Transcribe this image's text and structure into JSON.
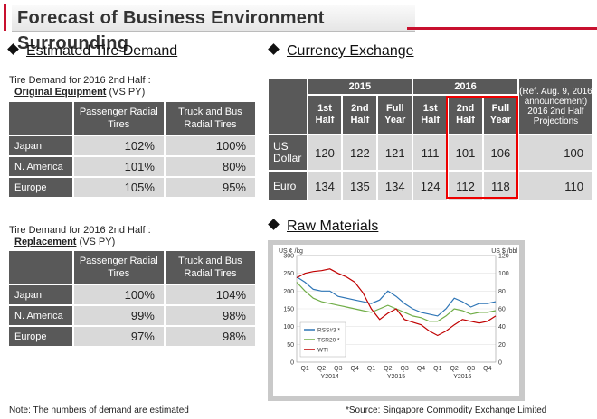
{
  "header": {
    "title": "Forecast of Business Environment Surrounding"
  },
  "tire_demand": {
    "heading": "Estimated Tire Demand",
    "oe": {
      "caption_line1": "Tire Demand for 2016 2nd Half :",
      "caption_bold": "Original Equipment",
      "caption_suffix": " (VS PY)",
      "col1": "Passenger Radial Tires",
      "col2": "Truck and Bus Radial Tires",
      "rows": [
        {
          "region": "Japan",
          "pass": "102%",
          "tb": "100%"
        },
        {
          "region": "N. America",
          "pass": "101%",
          "tb": "80%"
        },
        {
          "region": "Europe",
          "pass": "105%",
          "tb": "95%"
        }
      ]
    },
    "rep": {
      "caption_line1": "Tire Demand for 2016 2nd Half :",
      "caption_bold": "Replacement",
      "caption_suffix": " (VS PY)",
      "col1": "Passenger Radial Tires",
      "col2": "Truck and Bus Radial Tires",
      "rows": [
        {
          "region": "Japan",
          "pass": "100%",
          "tb": "104%"
        },
        {
          "region": "N. America",
          "pass": "99%",
          "tb": "98%"
        },
        {
          "region": "Europe",
          "pass": "97%",
          "tb": "98%"
        }
      ]
    },
    "note": "Note: The numbers of demand are estimated"
  },
  "currency": {
    "heading": "Currency Exchange",
    "y2015": "2015",
    "y2016": "2016",
    "ref": "(Ref. Aug. 9, 2016 announcement) 2016 2nd Half Projections",
    "cols": [
      "1st Half",
      "2nd Half",
      "Full Year",
      "1st Half",
      "2nd Half",
      "Full Year"
    ],
    "rows": [
      {
        "name": "US Dollar",
        "vals": [
          "120",
          "122",
          "121",
          "111",
          "101",
          "106"
        ],
        "proj": "100"
      },
      {
        "name": "Euro",
        "vals": [
          "134",
          "135",
          "134",
          "124",
          "112",
          "118"
        ],
        "proj": "110"
      }
    ]
  },
  "raw": {
    "heading": "Raw Materials",
    "source": "*Source: Singapore Commodity Exchange Limited"
  },
  "chart_data": {
    "type": "line",
    "title": "",
    "ylabel": "US ¢ /kg",
    "y2label": "US $ /bbl",
    "ylim": [
      0,
      300
    ],
    "y2lim": [
      0,
      120
    ],
    "yticks": [
      "0",
      "50",
      "100",
      "150",
      "200",
      "250",
      "300"
    ],
    "y2ticks": [
      "0",
      "20",
      "40",
      "60",
      "80",
      "100",
      "120"
    ],
    "xticks": [
      "Q1",
      "Q2",
      "Q3",
      "Q4",
      "Q1",
      "Q2",
      "Q3",
      "Q4",
      "Q1",
      "Q2",
      "Q3",
      "Q4"
    ],
    "years": [
      "Y2014",
      "Y2015",
      "Y2016"
    ],
    "x": [
      0,
      0.5,
      1,
      1.5,
      2,
      2.5,
      3,
      3.5,
      4,
      4.5,
      5,
      5.5,
      6,
      6.5,
      7,
      7.5,
      8,
      8.5,
      9,
      9.5,
      10,
      10.5,
      11,
      11.5,
      12
    ],
    "series": [
      {
        "name": "RSS#3 *",
        "color": "#2e75b6",
        "axis": "left",
        "values": [
          240,
          225,
          205,
          200,
          200,
          185,
          180,
          175,
          170,
          165,
          175,
          200,
          185,
          165,
          150,
          140,
          135,
          130,
          150,
          180,
          170,
          155,
          165,
          165,
          170
        ]
      },
      {
        "name": "TSR20 *",
        "color": "#70ad47",
        "axis": "left",
        "values": [
          225,
          200,
          180,
          170,
          165,
          160,
          155,
          150,
          145,
          140,
          150,
          160,
          150,
          140,
          130,
          125,
          115,
          115,
          130,
          150,
          145,
          135,
          140,
          140,
          145
        ]
      },
      {
        "name": "WTI",
        "color": "#c00000",
        "axis": "right",
        "values": [
          95,
          100,
          102,
          103,
          105,
          100,
          96,
          90,
          78,
          60,
          48,
          55,
          60,
          48,
          45,
          42,
          35,
          30,
          35,
          42,
          48,
          46,
          44,
          46,
          52
        ]
      }
    ]
  }
}
